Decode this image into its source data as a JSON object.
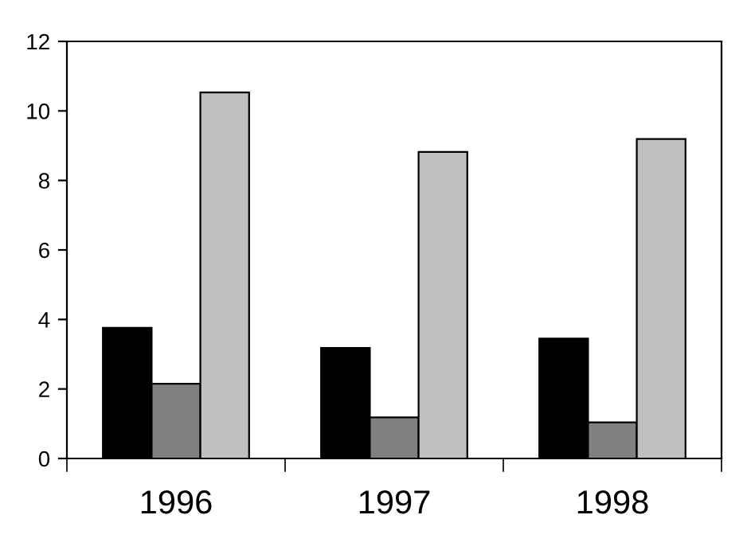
{
  "chart_data": {
    "type": "bar",
    "categories": [
      "1996",
      "1997",
      "1998"
    ],
    "series": [
      {
        "color": "#000000",
        "values": [
          3.76,
          3.18,
          3.45
        ]
      },
      {
        "color": "#808080",
        "values": [
          2.15,
          1.18,
          1.04
        ]
      },
      {
        "color": "#c0c0c0",
        "values": [
          10.53,
          8.82,
          9.19
        ]
      }
    ],
    "ylim": [
      0,
      12
    ],
    "yticks": [
      0,
      2,
      4,
      6,
      8,
      10,
      12
    ],
    "grid": false,
    "legend": false
  }
}
